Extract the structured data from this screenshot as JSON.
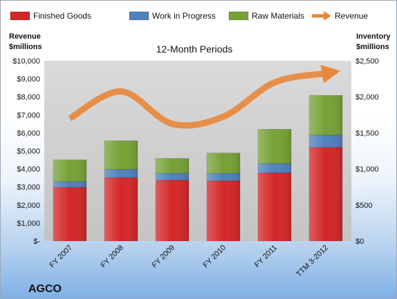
{
  "chart_data": {
    "type": "bar",
    "subtitle": "12-Month Periods",
    "company": "AGCO",
    "categories": [
      "FY 2007",
      "FY 2008",
      "FY 2009",
      "FY 2010",
      "FY 2011",
      "TTM 3-2012"
    ],
    "left_axis": {
      "label_line1": "Revenue",
      "label_line2": "$millions",
      "ylim": [
        0,
        10000
      ],
      "ticks": [
        "$-",
        "$1,000",
        "$2,000",
        "$3,000",
        "$4,000",
        "$5,000",
        "$6,000",
        "$7,000",
        "$8,000",
        "$9,000",
        "$10,000"
      ]
    },
    "right_axis": {
      "label_line1": "Inventory",
      "label_line2": "$millions",
      "ylim": [
        0,
        2500
      ],
      "ticks": [
        "$0",
        "$500",
        "$1,000",
        "$1,500",
        "$2,000",
        "$2,500"
      ]
    },
    "stacked": true,
    "series": [
      {
        "name": "Finished Goods",
        "axis": "right",
        "color": "#d42727",
        "values": [
          745,
          880,
          845,
          835,
          945,
          1300
        ]
      },
      {
        "name": "Work in Progress",
        "axis": "right",
        "color": "#4f81bd",
        "values": [
          80,
          115,
          95,
          105,
          130,
          170
        ]
      },
      {
        "name": "Raw Materials",
        "axis": "right",
        "color": "#77a136",
        "values": [
          300,
          395,
          205,
          280,
          475,
          550
        ]
      },
      {
        "name": "Revenue",
        "axis": "left",
        "type": "line",
        "color": "#e8883c",
        "values": [
          6800,
          8300,
          6500,
          6900,
          8800,
          9300
        ]
      }
    ],
    "legend_position": "top",
    "grid": false,
    "plot_background": "gray-gradient"
  }
}
